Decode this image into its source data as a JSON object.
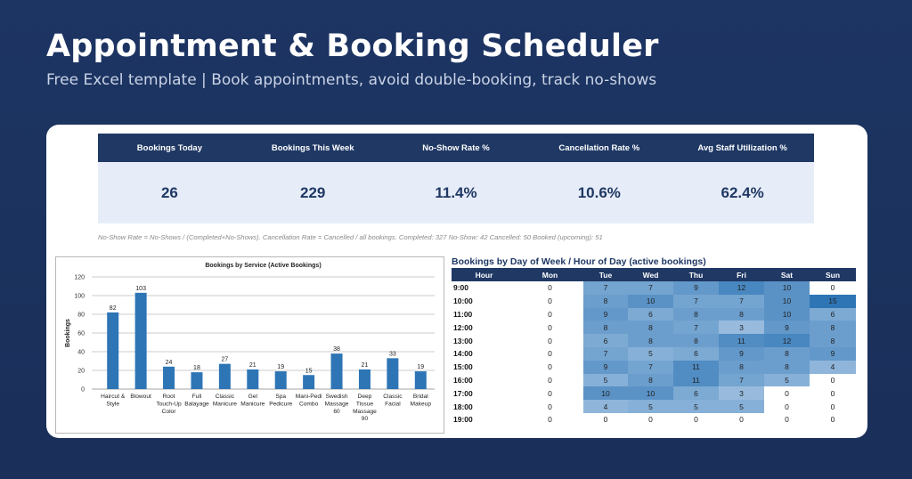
{
  "header": {
    "title": "Appointment & Booking Scheduler",
    "subtitle": "Free Excel template  |  Book appointments, avoid double-booking, track no-shows"
  },
  "kpis": {
    "labels": [
      "Bookings Today",
      "Bookings This Week",
      "No-Show Rate %",
      "Cancellation Rate %",
      "Avg Staff Utilization %"
    ],
    "values": [
      "26",
      "229",
      "11.4%",
      "10.6%",
      "62.4%"
    ]
  },
  "note": "No-Show Rate = No-Shows / (Completed+No-Shows). Cancellation Rate = Cancelled / all bookings. Completed: 327  No-Show: 42  Cancelled: 50  Booked (upcoming): 51",
  "colors": {
    "navy": "#1f3864",
    "bar": "#2e75b6",
    "heat_base": "#ffffff",
    "heat_max": "#2e75b6"
  },
  "chart_data": {
    "type": "bar",
    "title": "Bookings by Service (Active Bookings)",
    "xlabel": "",
    "ylabel": "Bookings",
    "ylim": [
      0,
      120
    ],
    "yticks": [
      0,
      20,
      40,
      60,
      80,
      100,
      120
    ],
    "grid": true,
    "categories": [
      [
        "Haircut &",
        "Style"
      ],
      [
        "Blowout"
      ],
      [
        "Root",
        "Touch-Up",
        "Color"
      ],
      [
        "Full",
        "Balayage"
      ],
      [
        "Classic",
        "Manicure"
      ],
      [
        "Gel",
        "Manicure"
      ],
      [
        "Spa",
        "Pedicure"
      ],
      [
        "Mani-Pedi",
        "Combo"
      ],
      [
        "Swedish",
        "Massage",
        "60"
      ],
      [
        "Deep",
        "Tissue",
        "Massage",
        "90"
      ],
      [
        "Classic",
        "Facial"
      ],
      [
        "Bridal",
        "Makeup"
      ]
    ],
    "values": [
      82,
      103,
      24,
      18,
      27,
      21,
      19,
      15,
      38,
      21,
      33,
      19
    ]
  },
  "heatmap": {
    "title": "Bookings by Day of Week / Hour of Day (active bookings)",
    "columns": [
      "Hour",
      "Mon",
      "Tue",
      "Wed",
      "Thu",
      "Fri",
      "Sat",
      "Sun"
    ],
    "max": 15,
    "rows": [
      {
        "hour": "9:00",
        "values": [
          0,
          7,
          7,
          9,
          12,
          10,
          0
        ]
      },
      {
        "hour": "10:00",
        "values": [
          0,
          8,
          10,
          7,
          7,
          10,
          15
        ]
      },
      {
        "hour": "11:00",
        "values": [
          0,
          9,
          6,
          8,
          8,
          10,
          6
        ]
      },
      {
        "hour": "12:00",
        "values": [
          0,
          8,
          8,
          7,
          3,
          9,
          8
        ]
      },
      {
        "hour": "13:00",
        "values": [
          0,
          6,
          8,
          8,
          11,
          12,
          8
        ]
      },
      {
        "hour": "14:00",
        "values": [
          0,
          7,
          5,
          6,
          9,
          8,
          9
        ]
      },
      {
        "hour": "15:00",
        "values": [
          0,
          9,
          7,
          11,
          8,
          8,
          4
        ]
      },
      {
        "hour": "16:00",
        "values": [
          0,
          5,
          8,
          11,
          7,
          5,
          0
        ]
      },
      {
        "hour": "17:00",
        "values": [
          0,
          10,
          10,
          6,
          3,
          0,
          0
        ]
      },
      {
        "hour": "18:00",
        "values": [
          0,
          4,
          5,
          5,
          5,
          0,
          0
        ]
      },
      {
        "hour": "19:00",
        "values": [
          0,
          0,
          0,
          0,
          0,
          0,
          0
        ]
      }
    ]
  }
}
